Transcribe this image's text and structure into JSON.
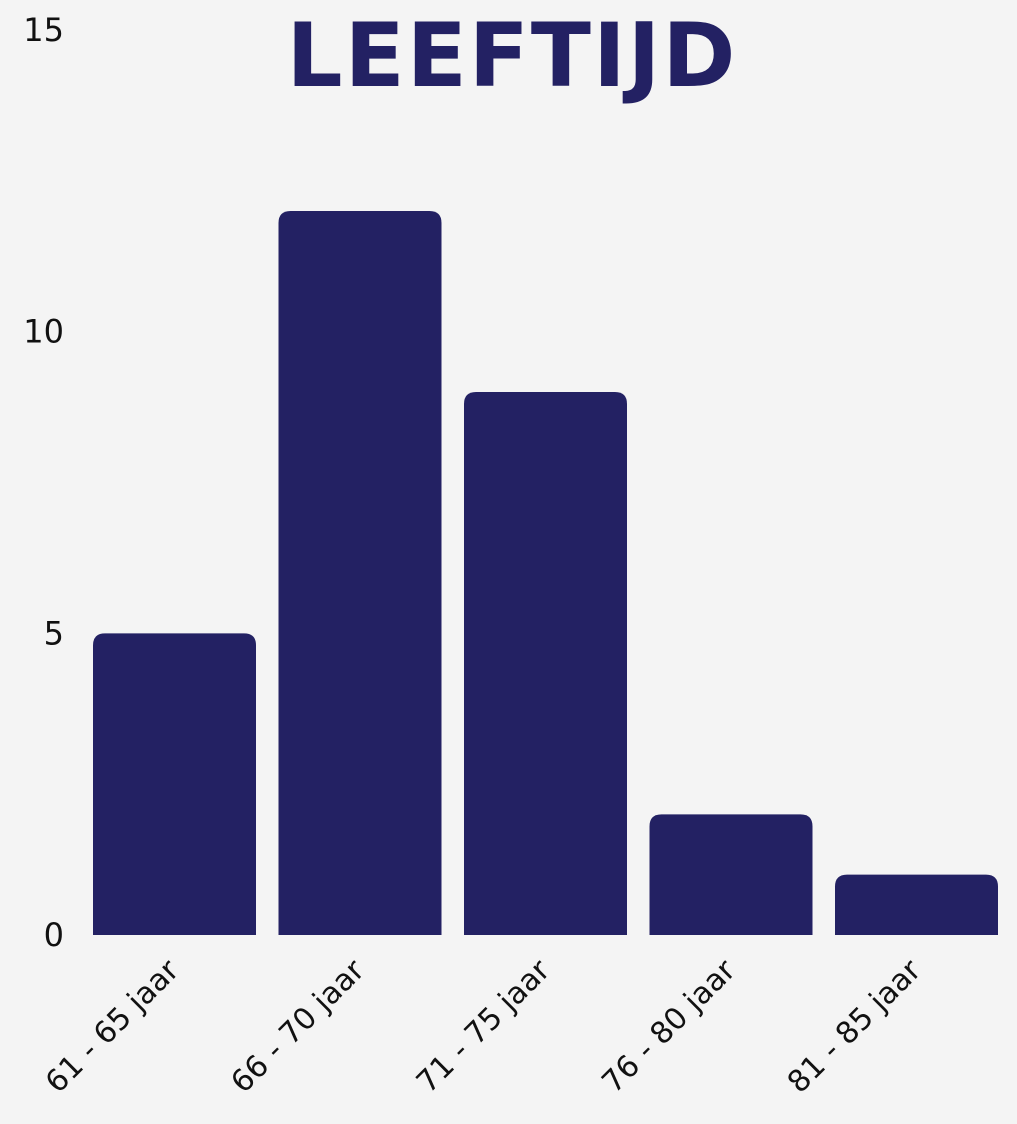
{
  "chart_data": {
    "type": "bar",
    "title": "LEEFTIJD",
    "categories": [
      "61 - 65 jaar",
      "66 - 70 jaar",
      "71 - 75 jaar",
      "76 - 80 jaar",
      "81 - 85 jaar"
    ],
    "values": [
      5,
      12,
      9,
      2,
      1
    ],
    "yticks": [
      "0",
      "5",
      "10",
      "15"
    ],
    "ylim": [
      0,
      15
    ],
    "xlabel": "",
    "ylabel": "",
    "grid": false,
    "legend": "none"
  },
  "colors": {
    "bar": "#232163",
    "title": "#232163",
    "background": "#f4f4f4",
    "text": "#111111"
  }
}
